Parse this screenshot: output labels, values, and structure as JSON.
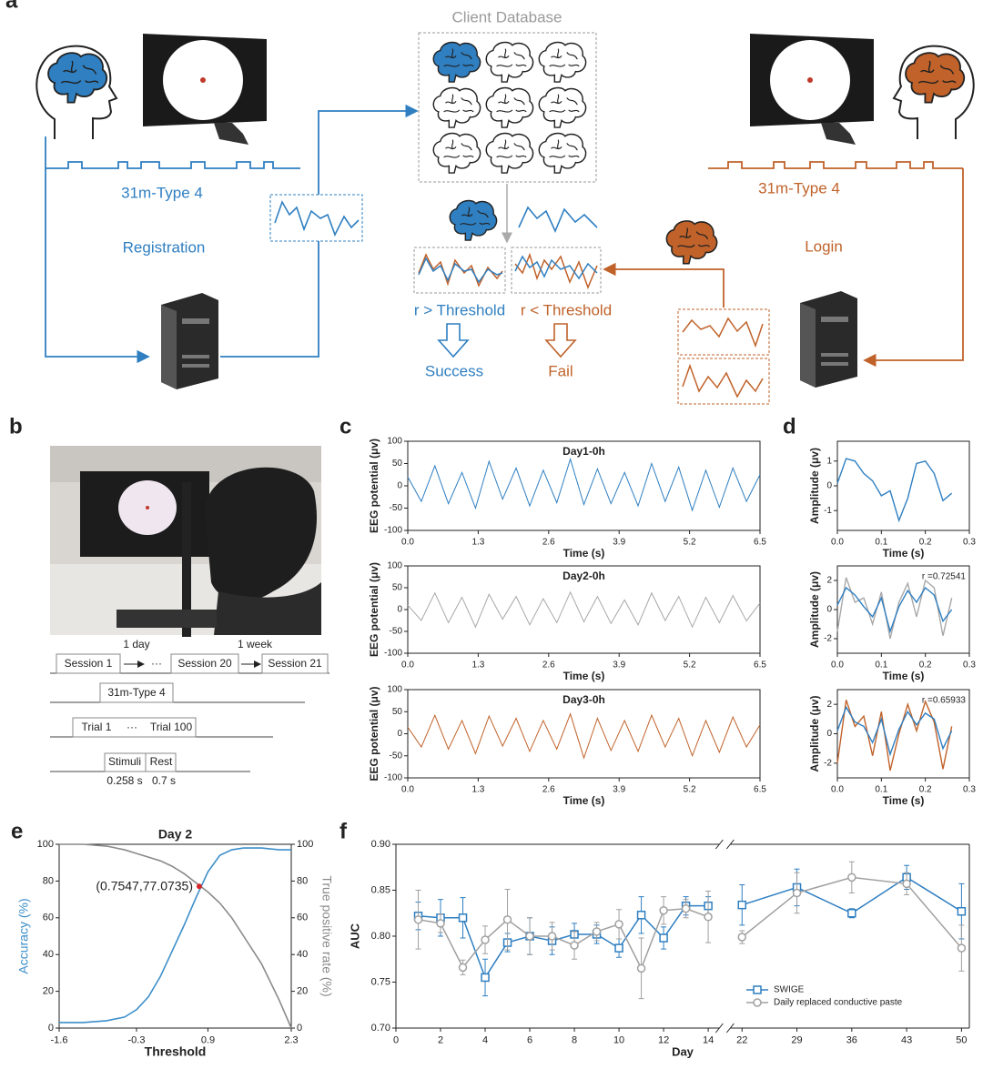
{
  "panel_labels": [
    "a",
    "b",
    "c",
    "d",
    "e",
    "f"
  ],
  "diagram_a": {
    "database_title": "Client Database",
    "left_signal_label": "31m-Type 4",
    "registration": "Registration",
    "right_signal_label": "31m-Type 4",
    "login": "Login",
    "match_rule": "r > Threshold",
    "reject_rule": "r < Threshold",
    "success": "Success",
    "fail": "Fail"
  },
  "diagram_b": {
    "interval_day": "1 day",
    "interval_week": "1 week",
    "sessions": [
      "Session 1",
      "Session 20",
      "Session 21"
    ],
    "ellipsis": "···",
    "paradigm": "31m-Type 4",
    "trials": [
      "Trial 1",
      "Trial 100"
    ],
    "stimuli": "Stimuli",
    "rest": "Rest",
    "stimuli_time": "0.258 s",
    "rest_time": "0.7 s"
  },
  "chart_data": [
    {
      "type": "line",
      "title": "Day1-0h",
      "xlabel": "Time (s)",
      "ylabel": "EEG potential (μv)",
      "xlim": [
        0,
        6.5
      ],
      "xticks": [
        {
          "value": 0,
          "label": "0.0"
        },
        1.3,
        2.6,
        3.9,
        5.2,
        6.5
      ],
      "ylim": [
        -100,
        100
      ],
      "yticks": [
        -100,
        -50,
        0,
        50,
        100
      ],
      "color": "#2f7fc1",
      "x": [
        0,
        0.25,
        0.5,
        0.75,
        1,
        1.25,
        1.5,
        1.75,
        2,
        2.25,
        2.5,
        2.75,
        3,
        3.25,
        3.5,
        3.75,
        4,
        4.25,
        4.5,
        4.75,
        5,
        5.25,
        5.5,
        5.75,
        6,
        6.25,
        6.5
      ],
      "values": [
        20,
        -35,
        45,
        -40,
        30,
        -50,
        55,
        -30,
        40,
        -45,
        35,
        -38,
        60,
        -42,
        38,
        -40,
        30,
        -45,
        50,
        -35,
        42,
        -55,
        35,
        -48,
        40,
        -35,
        25
      ]
    },
    {
      "type": "line",
      "title": "Day2-0h",
      "xlabel": "Time (s)",
      "ylabel": "EEG potential (μv)",
      "xlim": [
        0,
        6.5
      ],
      "xticks": [
        {
          "value": 0,
          "label": "0.0"
        },
        1.3,
        2.6,
        3.9,
        5.2,
        6.5
      ],
      "ylim": [
        -100,
        100
      ],
      "yticks": [
        -100,
        -50,
        0,
        50,
        100
      ],
      "color": "#a8a8a8",
      "x": [
        0,
        0.25,
        0.5,
        0.75,
        1,
        1.25,
        1.5,
        1.75,
        2,
        2.25,
        2.5,
        2.75,
        3,
        3.25,
        3.5,
        3.75,
        4,
        4.25,
        4.5,
        4.75,
        5,
        5.25,
        5.5,
        5.75,
        6,
        6.25,
        6.5
      ],
      "values": [
        10,
        -25,
        38,
        -30,
        28,
        -40,
        35,
        -22,
        30,
        -35,
        25,
        -30,
        40,
        -28,
        30,
        -32,
        22,
        -35,
        38,
        -25,
        30,
        -40,
        28,
        -30,
        32,
        -26,
        15
      ]
    },
    {
      "type": "line",
      "title": "Day3-0h",
      "xlabel": "Time (s)",
      "ylabel": "EEG potential (μv)",
      "xlim": [
        0,
        6.5
      ],
      "xticks": [
        {
          "value": 0,
          "label": "0.0"
        },
        1.3,
        2.6,
        3.9,
        5.2,
        6.5
      ],
      "ylim": [
        -100,
        100
      ],
      "yticks": [
        -100,
        -50,
        0,
        50,
        100
      ],
      "color": "#c0622a",
      "x": [
        0,
        0.25,
        0.5,
        0.75,
        1,
        1.25,
        1.5,
        1.75,
        2,
        2.25,
        2.5,
        2.75,
        3,
        3.25,
        3.5,
        3.75,
        4,
        4.25,
        4.5,
        4.75,
        5,
        5.25,
        5.5,
        5.75,
        6,
        6.25,
        6.5
      ],
      "values": [
        15,
        -30,
        42,
        -35,
        30,
        -45,
        40,
        -28,
        35,
        -40,
        30,
        -35,
        45,
        -55,
        35,
        -38,
        30,
        -40,
        42,
        -30,
        35,
        -50,
        30,
        -42,
        38,
        -30,
        20
      ]
    },
    {
      "type": "line",
      "xlabel": "Time (s)",
      "ylabel": "Amplitude (μv)",
      "xlim": [
        0,
        0.3
      ],
      "xticks": [
        {
          "value": 0,
          "label": "0.0"
        },
        0.1,
        0.2,
        0.3
      ],
      "ylim": [
        -1.8,
        1.8
      ],
      "yticks": [
        -1,
        0,
        1
      ],
      "color": "#2f7fc1",
      "x": [
        0,
        0.02,
        0.04,
        0.06,
        0.08,
        0.1,
        0.12,
        0.14,
        0.16,
        0.18,
        0.2,
        0.22,
        0.24,
        0.26
      ],
      "values": [
        0.1,
        1.1,
        1.0,
        0.5,
        0.2,
        -0.4,
        -0.2,
        -1.4,
        -0.5,
        0.9,
        1.0,
        0.5,
        -0.6,
        -0.3
      ]
    },
    {
      "type": "line",
      "xlabel": "Time (s)",
      "ylabel": "Amplitude (μv)",
      "annotation": "r =0.72541",
      "xlim": [
        0,
        0.3
      ],
      "xticks": [
        {
          "value": 0,
          "label": "0.0"
        },
        0.1,
        0.2,
        0.3
      ],
      "ylim": [
        -3,
        3
      ],
      "yticks": [
        -2,
        0,
        2
      ],
      "x": [
        0,
        0.02,
        0.04,
        0.06,
        0.08,
        0.1,
        0.12,
        0.14,
        0.16,
        0.18,
        0.2,
        0.22,
        0.24,
        0.26
      ],
      "series": [
        {
          "color": "#a8a8a8",
          "values": [
            -1.5,
            2.2,
            0.5,
            0.8,
            -1.0,
            1.2,
            -2.0,
            0.5,
            1.8,
            -0.5,
            2.0,
            1.5,
            -1.8,
            0.8
          ]
        },
        {
          "color": "#2f7fc1",
          "values": [
            0.3,
            1.5,
            1.0,
            0.2,
            -0.5,
            0.8,
            -1.5,
            0.2,
            1.3,
            0.5,
            1.5,
            1.0,
            -0.8,
            0
          ]
        }
      ]
    },
    {
      "type": "line",
      "xlabel": "Time (s)",
      "ylabel": "Amplitude (μv)",
      "annotation": "r =0.65933",
      "xlim": [
        0,
        0.3
      ],
      "xticks": [
        {
          "value": 0,
          "label": "0.0"
        },
        0.1,
        0.2,
        0.3
      ],
      "ylim": [
        -3,
        3
      ],
      "yticks": [
        -2,
        0,
        2
      ],
      "x": [
        0,
        0.02,
        0.04,
        0.06,
        0.08,
        0.1,
        0.12,
        0.14,
        0.16,
        0.18,
        0.2,
        0.22,
        0.24,
        0.26
      ],
      "series": [
        {
          "color": "#c0622a",
          "values": [
            -2.0,
            2.3,
            0.5,
            1.2,
            -1.5,
            1.5,
            -2.5,
            0.0,
            2.0,
            0.2,
            2.2,
            0.8,
            -2.4,
            0.5
          ]
        },
        {
          "color": "#2f7fc1",
          "values": [
            0.2,
            1.8,
            0.8,
            0.5,
            -0.6,
            1.0,
            -1.4,
            0.3,
            1.5,
            0.6,
            1.4,
            1.0,
            -1.0,
            0.2
          ]
        }
      ]
    },
    {
      "type": "line",
      "title": "Day 2",
      "xlabel": "Threshold",
      "ylabel": "Accuracy (%)",
      "y2label": "True positive rate (%)",
      "annotation": "(0.7547,77.0735)",
      "highlight": {
        "x": 0.7547,
        "y": 77.0735,
        "color": "#d62728"
      },
      "xlim": [
        -1.6,
        2.3
      ],
      "xticks": [
        -1.6,
        -0.3,
        0.9,
        2.3
      ],
      "ylim": [
        0,
        100
      ],
      "yticks": [
        0,
        20,
        40,
        60,
        80,
        100
      ],
      "y2lim": [
        0,
        100
      ],
      "y2ticks": [
        0,
        20,
        40,
        60,
        80,
        100
      ],
      "x": [
        -1.6,
        -1.2,
        -0.8,
        -0.5,
        -0.3,
        -0.1,
        0.1,
        0.3,
        0.5,
        0.7,
        0.9,
        1.1,
        1.3,
        1.5,
        1.8,
        2.1,
        2.3
      ],
      "series": [
        {
          "color": "#3d8fc9",
          "values": [
            3,
            3,
            4,
            6,
            10,
            17,
            28,
            42,
            56,
            71,
            85,
            94,
            97,
            98,
            98,
            97,
            97
          ]
        },
        {
          "color": "#8a8a8a",
          "axis": "y2",
          "values": [
            100,
            100,
            99,
            97,
            95,
            93,
            91,
            88,
            84,
            79,
            74,
            68,
            60,
            50,
            35,
            15,
            0
          ]
        }
      ]
    },
    {
      "type": "line",
      "xlabel": "Day",
      "ylabel": "AUC",
      "legend": "lower right",
      "xlim": [
        [
          0,
          14.5
        ],
        [
          20.5,
          51
        ]
      ],
      "xticks": [
        0,
        2,
        4,
        6,
        8,
        10,
        12,
        14,
        22,
        29,
        36,
        43,
        50
      ],
      "ylim": [
        0.7,
        0.9
      ],
      "yticks": [
        {
          "value": 0.7,
          "label": "0.70"
        },
        0.75,
        {
          "value": 0.8,
          "label": "0.80"
        },
        0.85,
        {
          "value": 0.9,
          "label": "0.90"
        }
      ],
      "x": [
        1,
        2,
        3,
        4,
        5,
        6,
        7,
        8,
        9,
        10,
        11,
        12,
        13,
        14,
        22,
        29,
        36,
        43,
        50
      ],
      "series": [
        {
          "name": "SWIGE",
          "color": "#2f7fc1",
          "marker": "square",
          "values": [
            0.822,
            0.82,
            0.82,
            0.755,
            0.793,
            0.8,
            0.795,
            0.802,
            0.802,
            0.787,
            0.823,
            0.798,
            0.833,
            0.833,
            0.834,
            0.853,
            0.825,
            0.864,
            0.827
          ],
          "errors": [
            0.015,
            0.02,
            0.022,
            0.02,
            0.01,
            0.02,
            0.015,
            0.012,
            0.01,
            0.01,
            0.02,
            0.012,
            0.01,
            0.01,
            0.022,
            0.02,
            0.005,
            0.013,
            0.03
          ]
        },
        {
          "name": "Daily replaced conductive paste",
          "color": "#a0a0a0",
          "marker": "circle",
          "values": [
            0.818,
            0.814,
            0.766,
            0.796,
            0.818,
            0.8,
            0.8,
            0.79,
            0.805,
            0.813,
            0.765,
            0.828,
            0.83,
            0.821,
            0.799,
            0.847,
            0.864,
            0.857,
            0.787
          ],
          "errors": [
            0.032,
            0.01,
            0.008,
            0.015,
            0.033,
            0.02,
            0.015,
            0.015,
            0.01,
            0.016,
            0.033,
            0.015,
            0.01,
            0.028,
            0.007,
            0.022,
            0.017,
            0.012,
            0.025
          ]
        }
      ]
    }
  ]
}
